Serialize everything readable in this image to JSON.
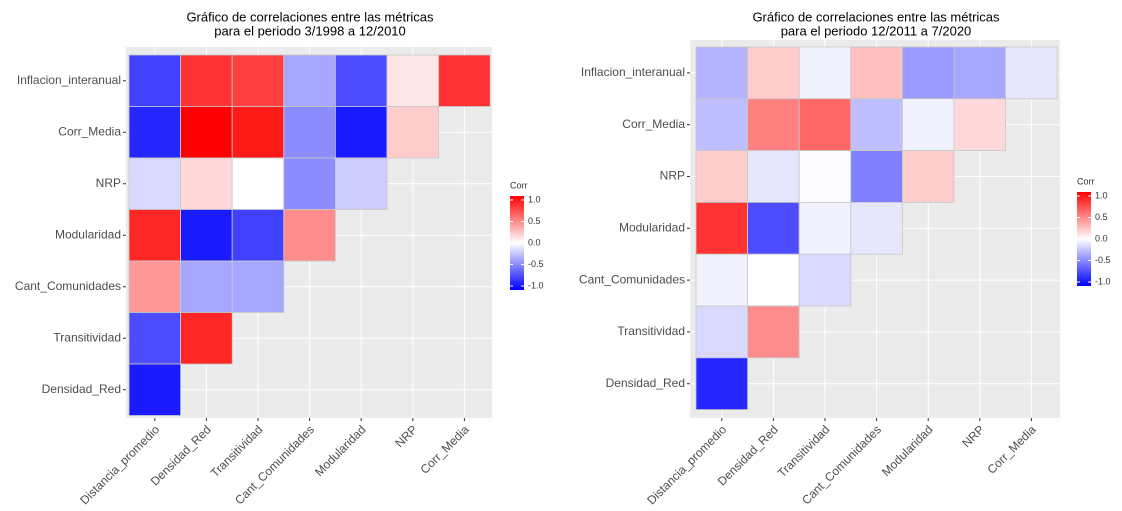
{
  "chart_data": [
    {
      "type": "heatmap",
      "title": [
        "Gráfico de correlaciones entre las métricas",
        "para el periodo 3/1998 a 12/2010"
      ],
      "x_categories": [
        "Distancia_promedio",
        "Densidad_Red",
        "Transitividad",
        "Cant_Comunidades",
        "Modularidad",
        "NRP",
        "Corr_Media"
      ],
      "y_categories": [
        "Inflacion_interanual",
        "Corr_Media",
        "NRP",
        "Modularidad",
        "Cant_Comunidades",
        "Transitividad",
        "Densidad_Red"
      ],
      "values": [
        [
          -0.75,
          0.8,
          0.75,
          -0.35,
          -0.7,
          0.1,
          0.8
        ],
        [
          -0.85,
          1.0,
          0.9,
          -0.45,
          -0.9,
          0.2,
          null
        ],
        [
          -0.15,
          0.15,
          0.0,
          -0.45,
          -0.2,
          null,
          null
        ],
        [
          0.85,
          -0.9,
          -0.75,
          0.45,
          null,
          null,
          null
        ],
        [
          0.4,
          -0.35,
          -0.35,
          null,
          null,
          null,
          null
        ],
        [
          -0.7,
          0.85,
          null,
          null,
          null,
          null,
          null
        ],
        [
          -0.9,
          null,
          null,
          null,
          null,
          null,
          null
        ]
      ],
      "legend_title": "Corr",
      "clim": [
        -1,
        1
      ],
      "cticks": [
        {
          "value": 1,
          "label": "1.0"
        },
        0.5,
        {
          "value": 0,
          "label": "0.0"
        },
        -0.5,
        {
          "value": -1,
          "label": "-1.0"
        }
      ],
      "low_color": "#0000ff",
      "mid_color": "#ffffff",
      "high_color": "#ff0000"
    },
    {
      "type": "heatmap",
      "title": [
        "Gráfico de correlaciones entre las métricas",
        "para el periodo 12/2011 a 7/2020"
      ],
      "x_categories": [
        "Distancia_promedio",
        "Densidad_Red",
        "Transitividad",
        "Cant_Comunidades",
        "Modularidad",
        "NRP",
        "Corr_Media"
      ],
      "y_categories": [
        "Inflacion_interanual",
        "Corr_Media",
        "NRP",
        "Modularidad",
        "Cant_Comunidades",
        "Transitividad",
        "Densidad_Red"
      ],
      "values": [
        [
          -0.3,
          0.2,
          -0.05,
          0.25,
          -0.4,
          -0.35,
          -0.1
        ],
        [
          -0.25,
          0.5,
          0.6,
          -0.25,
          -0.05,
          0.15,
          null
        ],
        [
          0.2,
          -0.1,
          -0.02,
          -0.5,
          0.2,
          null,
          null
        ],
        [
          0.8,
          -0.7,
          -0.05,
          -0.1,
          null,
          null,
          null
        ],
        [
          -0.05,
          0.0,
          -0.15,
          null,
          null,
          null,
          null
        ],
        [
          -0.15,
          0.45,
          null,
          null,
          null,
          null,
          null
        ],
        [
          -0.85,
          null,
          null,
          null,
          null,
          null,
          null
        ]
      ],
      "legend_title": "Corr",
      "clim": [
        -1,
        1
      ],
      "cticks": [
        {
          "value": 1,
          "label": "1.0"
        },
        0.5,
        {
          "value": 0,
          "label": "0.0"
        },
        -0.5,
        {
          "value": -1,
          "label": "-1.0"
        }
      ],
      "low_color": "#0000ff",
      "mid_color": "#ffffff",
      "high_color": "#ff0000"
    }
  ]
}
